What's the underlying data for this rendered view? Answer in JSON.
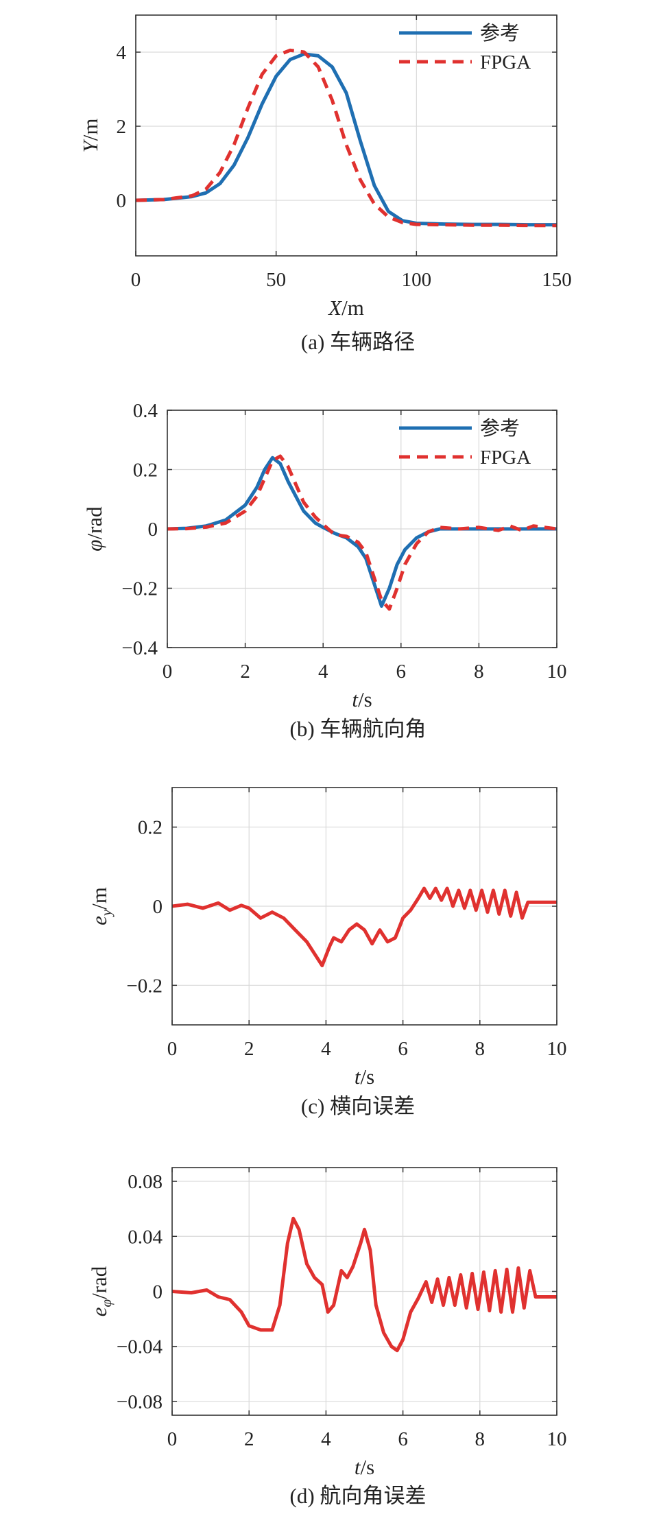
{
  "chart_data": [
    {
      "type": "line",
      "caption": "(a) 车辆路径",
      "xlabel_var": "X",
      "xlabel_unit": "/m",
      "ylabel_var": "Y",
      "ylabel_unit": "/m",
      "xlim": [
        0,
        150
      ],
      "ylim": [
        -1.5,
        5
      ],
      "xticks": [
        0,
        50,
        100,
        150
      ],
      "yticks": [
        0,
        2,
        4
      ],
      "grid": true,
      "legend": "top-right",
      "series": [
        {
          "name": "参考",
          "style": "solid",
          "color": "#1f6fb2",
          "x": [
            0,
            10,
            20,
            25,
            30,
            35,
            40,
            45,
            50,
            55,
            60,
            65,
            70,
            75,
            80,
            85,
            90,
            95,
            100,
            110,
            120,
            130,
            140,
            150
          ],
          "y": [
            0,
            0.02,
            0.1,
            0.2,
            0.45,
            0.95,
            1.7,
            2.6,
            3.35,
            3.8,
            3.95,
            3.9,
            3.6,
            2.9,
            1.6,
            0.4,
            -0.3,
            -0.55,
            -0.62,
            -0.64,
            -0.65,
            -0.65,
            -0.66,
            -0.66
          ]
        },
        {
          "name": "FPGA",
          "style": "dashed",
          "color": "#e0312f",
          "x": [
            0,
            10,
            20,
            25,
            30,
            35,
            40,
            45,
            50,
            55,
            60,
            65,
            70,
            75,
            80,
            85,
            90,
            95,
            100,
            110,
            120,
            130,
            140,
            150
          ],
          "y": [
            0,
            0.02,
            0.12,
            0.3,
            0.75,
            1.5,
            2.5,
            3.4,
            3.9,
            4.05,
            4.0,
            3.6,
            2.7,
            1.5,
            0.55,
            -0.1,
            -0.45,
            -0.6,
            -0.65,
            -0.66,
            -0.67,
            -0.67,
            -0.68,
            -0.68
          ]
        }
      ]
    },
    {
      "type": "line",
      "caption": "(b) 车辆航向角",
      "xlabel_var": "t",
      "xlabel_unit": "/s",
      "ylabel_var": "φ",
      "ylabel_unit": "/rad",
      "xlim": [
        0,
        10
      ],
      "ylim": [
        -0.4,
        0.4
      ],
      "xticks": [
        0,
        2,
        4,
        6,
        8,
        10
      ],
      "yticks": [
        -0.4,
        -0.2,
        0,
        0.2,
        0.4
      ],
      "grid": true,
      "legend": "top-right",
      "series": [
        {
          "name": "参考",
          "style": "solid",
          "color": "#1f6fb2",
          "x": [
            0,
            0.5,
            1,
            1.5,
            2,
            2.3,
            2.5,
            2.7,
            2.9,
            3.1,
            3.3,
            3.5,
            3.8,
            4.0,
            4.3,
            4.6,
            4.9,
            5.1,
            5.3,
            5.5,
            5.7,
            5.9,
            6.1,
            6.4,
            6.7,
            7,
            8,
            9,
            10
          ],
          "y": [
            0,
            0.002,
            0.01,
            0.03,
            0.08,
            0.14,
            0.2,
            0.24,
            0.22,
            0.16,
            0.11,
            0.06,
            0.02,
            0.005,
            -0.015,
            -0.03,
            -0.06,
            -0.1,
            -0.18,
            -0.26,
            -0.2,
            -0.12,
            -0.07,
            -0.03,
            -0.01,
            0,
            0,
            0,
            0
          ]
        },
        {
          "name": "FPGA",
          "style": "dashed",
          "color": "#e0312f",
          "x": [
            0,
            0.5,
            1,
            1.5,
            2,
            2.3,
            2.5,
            2.7,
            2.9,
            3.1,
            3.3,
            3.5,
            3.8,
            4.0,
            4.3,
            4.6,
            4.9,
            5.1,
            5.3,
            5.5,
            5.7,
            5.9,
            6.1,
            6.4,
            6.7,
            7,
            7.5,
            8,
            8.5,
            8.8,
            9.1,
            9.4,
            10
          ],
          "y": [
            0,
            0.001,
            0.006,
            0.02,
            0.06,
            0.11,
            0.17,
            0.23,
            0.245,
            0.21,
            0.15,
            0.09,
            0.04,
            0.015,
            -0.02,
            -0.025,
            -0.045,
            -0.08,
            -0.16,
            -0.24,
            -0.27,
            -0.2,
            -0.12,
            -0.05,
            -0.01,
            0.005,
            0,
            0.005,
            -0.005,
            0.01,
            -0.005,
            0.01,
            0
          ]
        }
      ]
    },
    {
      "type": "line",
      "caption": "(c) 横向误差",
      "xlabel_var": "t",
      "xlabel_unit": "/s",
      "ylabel_var": "e",
      "ylabel_sub": "y",
      "ylabel_unit": "/m",
      "xlim": [
        0,
        10
      ],
      "ylim": [
        -0.3,
        0.3
      ],
      "xticks": [
        0,
        2,
        4,
        6,
        8,
        10
      ],
      "yticks": [
        -0.2,
        0,
        0.2
      ],
      "grid": true,
      "series": [
        {
          "name": "",
          "style": "solid",
          "color": "#e0312f",
          "x": [
            0,
            0.4,
            0.8,
            1.2,
            1.5,
            1.8,
            2.0,
            2.3,
            2.6,
            2.9,
            3.2,
            3.5,
            3.7,
            3.9,
            4.1,
            4.2,
            4.4,
            4.6,
            4.8,
            5.0,
            5.2,
            5.4,
            5.6,
            5.8,
            6.0,
            6.2,
            6.4,
            6.55,
            6.7,
            6.85,
            7.0,
            7.15,
            7.3,
            7.45,
            7.6,
            7.75,
            7.9,
            8.05,
            8.2,
            8.35,
            8.5,
            8.65,
            8.8,
            8.95,
            9.1,
            9.25,
            9.4,
            10
          ],
          "y": [
            0,
            0.005,
            -0.005,
            0.008,
            -0.01,
            0.002,
            -0.005,
            -0.03,
            -0.015,
            -0.03,
            -0.06,
            -0.09,
            -0.12,
            -0.15,
            -0.1,
            -0.08,
            -0.09,
            -0.06,
            -0.045,
            -0.06,
            -0.095,
            -0.06,
            -0.09,
            -0.08,
            -0.03,
            -0.01,
            0.02,
            0.045,
            0.02,
            0.045,
            0.015,
            0.045,
            0.0,
            0.04,
            -0.005,
            0.04,
            -0.01,
            0.04,
            -0.015,
            0.04,
            -0.02,
            0.04,
            -0.025,
            0.035,
            -0.03,
            0.01,
            0.01,
            0.01
          ]
        }
      ]
    },
    {
      "type": "line",
      "caption": "(d) 航向角误差",
      "xlabel_var": "t",
      "xlabel_unit": "/s",
      "ylabel_var": "e",
      "ylabel_sub": "φ",
      "ylabel_unit": "/rad",
      "xlim": [
        0,
        10
      ],
      "ylim": [
        -0.09,
        0.09
      ],
      "xticks": [
        0,
        2,
        4,
        6,
        8,
        10
      ],
      "yticks": [
        -0.08,
        -0.04,
        0,
        0.04,
        0.08
      ],
      "grid": true,
      "series": [
        {
          "name": "",
          "style": "solid",
          "color": "#e0312f",
          "x": [
            0,
            0.5,
            0.9,
            1.2,
            1.5,
            1.8,
            2.0,
            2.3,
            2.6,
            2.8,
            3.0,
            3.15,
            3.3,
            3.5,
            3.7,
            3.9,
            4.05,
            4.2,
            4.4,
            4.55,
            4.7,
            4.9,
            5.0,
            5.15,
            5.3,
            5.5,
            5.7,
            5.85,
            6.0,
            6.2,
            6.4,
            6.6,
            6.75,
            6.9,
            7.05,
            7.2,
            7.35,
            7.5,
            7.65,
            7.8,
            7.95,
            8.1,
            8.25,
            8.4,
            8.55,
            8.7,
            8.85,
            9.0,
            9.15,
            9.3,
            9.45,
            10
          ],
          "y": [
            0,
            -0.001,
            0.001,
            -0.004,
            -0.006,
            -0.015,
            -0.025,
            -0.028,
            -0.028,
            -0.01,
            0.035,
            0.053,
            0.045,
            0.02,
            0.01,
            0.005,
            -0.015,
            -0.01,
            0.015,
            0.01,
            0.018,
            0.035,
            0.045,
            0.03,
            -0.01,
            -0.03,
            -0.04,
            -0.043,
            -0.035,
            -0.015,
            -0.005,
            0.007,
            -0.008,
            0.009,
            -0.01,
            0.01,
            -0.01,
            0.012,
            -0.012,
            0.013,
            -0.013,
            0.014,
            -0.014,
            0.015,
            -0.015,
            0.016,
            -0.015,
            0.017,
            -0.012,
            0.015,
            -0.004,
            -0.004
          ]
        }
      ]
    }
  ]
}
